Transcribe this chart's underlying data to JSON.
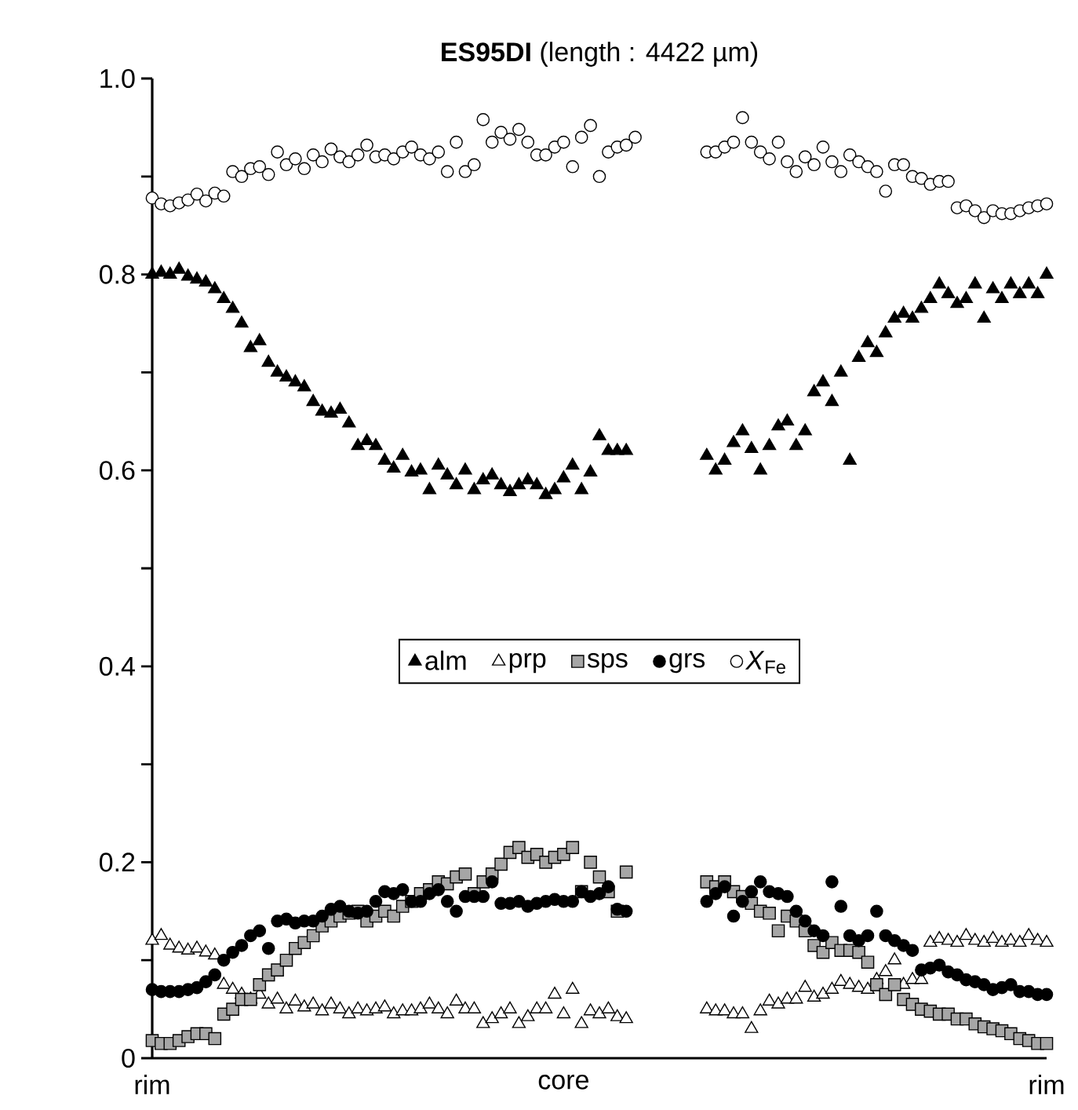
{
  "chart_data": {
    "type": "scatter",
    "title": "**ES95DI** (length : 4422 µm)",
    "categories": [
      "rim",
      null,
      null,
      null,
      null,
      null,
      null,
      null,
      null,
      null,
      null,
      null,
      null,
      null,
      null,
      null,
      null,
      null,
      null,
      null,
      null,
      null,
      null,
      null,
      null,
      null,
      null,
      null,
      null,
      null,
      null,
      null,
      null,
      null,
      null,
      null,
      null,
      null,
      null,
      null,
      null,
      null,
      null,
      null,
      null,
      null,
      "core",
      null,
      null,
      null,
      null,
      null,
      null,
      null,
      null,
      null,
      null,
      null,
      null,
      null,
      null,
      null,
      null,
      null,
      null,
      null,
      null,
      null,
      null,
      null,
      null,
      null,
      null,
      null,
      null,
      null,
      null,
      null,
      null,
      null,
      null,
      null,
      null,
      null,
      null,
      null,
      null,
      null,
      null,
      null,
      null,
      null,
      null,
      null,
      null,
      null,
      null,
      null,
      null,
      null,
      "rim"
    ],
    "ylim": [
      0,
      1
    ],
    "yticks": [
      0,
      {
        "value": 0.1,
        "label": null
      },
      0.2,
      {
        "value": 0.3,
        "label": null
      },
      0.4,
      {
        "value": 0.5,
        "label": null
      },
      0.6,
      {
        "value": 0.7,
        "label": null
      },
      0.8,
      {
        "value": 0.9,
        "label": null
      },
      {
        "value": 1,
        "label": "1.0"
      }
    ],
    "legend": "center",
    "grid": false,
    "series": [
      {
        "name": "alm",
        "marker": "triangle",
        "color": "#000000",
        "values": [
          0.8,
          0.802,
          0.8,
          0.805,
          0.798,
          0.795,
          0.792,
          0.785,
          0.775,
          0.765,
          0.75,
          0.725,
          0.732,
          0.71,
          0.7,
          0.695,
          0.69,
          0.685,
          0.67,
          0.66,
          0.658,
          0.662,
          0.648,
          0.625,
          0.63,
          0.625,
          0.61,
          0.602,
          0.615,
          0.598,
          0.6,
          0.58,
          0.605,
          0.595,
          0.585,
          0.6,
          0.58,
          0.59,
          0.595,
          0.585,
          0.578,
          0.585,
          0.59,
          0.585,
          0.575,
          0.58,
          0.592,
          0.605,
          0.58,
          0.598,
          0.635,
          0.62,
          0.62,
          0.62,
          null,
          null,
          null,
          null,
          null,
          null,
          null,
          null,
          0.615,
          0.6,
          0.61,
          0.628,
          0.64,
          0.622,
          0.6,
          0.625,
          0.645,
          0.65,
          0.625,
          0.64,
          0.68,
          0.69,
          0.67,
          0.7,
          0.61,
          0.715,
          0.73,
          0.72,
          0.74,
          0.755,
          0.76,
          0.755,
          0.765,
          0.775,
          0.79,
          0.78,
          0.77,
          0.775,
          0.79,
          0.755,
          0.785,
          0.775,
          0.79,
          0.78,
          0.79,
          0.78,
          0.8
        ]
      },
      {
        "name": "prp",
        "marker": "triangle",
        "color": "#ffffff",
        "values": [
          0.12,
          0.125,
          0.115,
          0.112,
          0.11,
          0.112,
          0.108,
          0.105,
          0.075,
          0.07,
          0.065,
          0.06,
          0.065,
          0.055,
          0.06,
          0.05,
          0.058,
          0.052,
          0.055,
          0.048,
          0.055,
          0.05,
          0.045,
          0.05,
          0.048,
          0.05,
          0.052,
          0.045,
          0.048,
          0.048,
          0.05,
          0.055,
          0.05,
          0.045,
          0.058,
          0.05,
          0.05,
          0.035,
          0.04,
          0.045,
          0.05,
          0.035,
          0.042,
          0.05,
          0.05,
          0.065,
          0.045,
          0.07,
          0.035,
          0.048,
          0.045,
          0.05,
          0.042,
          0.04,
          null,
          null,
          null,
          null,
          null,
          null,
          null,
          null,
          0.05,
          0.048,
          0.048,
          0.045,
          0.045,
          0.03,
          0.048,
          0.058,
          0.055,
          0.06,
          0.06,
          0.072,
          0.062,
          0.065,
          0.07,
          0.078,
          0.075,
          0.072,
          0.07,
          0.08,
          0.088,
          0.1,
          0.075,
          0.08,
          0.08,
          0.118,
          0.122,
          0.12,
          0.118,
          0.125,
          0.12,
          0.118,
          0.122,
          0.118,
          0.12,
          0.118,
          0.125,
          0.12,
          0.118
        ]
      },
      {
        "name": "sps",
        "marker": "square",
        "color": "#a6a6a6",
        "values": [
          0.018,
          0.015,
          0.015,
          0.018,
          0.022,
          0.025,
          0.025,
          0.02,
          0.045,
          0.05,
          0.06,
          0.06,
          0.075,
          0.085,
          0.09,
          0.1,
          0.112,
          0.118,
          0.125,
          0.135,
          0.14,
          0.145,
          0.148,
          0.15,
          0.14,
          0.145,
          0.15,
          0.145,
          0.155,
          0.16,
          0.168,
          0.172,
          0.18,
          0.178,
          0.185,
          0.188,
          0.168,
          0.18,
          0.188,
          0.198,
          0.21,
          0.215,
          0.205,
          0.208,
          0.2,
          0.205,
          0.208,
          0.215,
          0.17,
          0.2,
          0.185,
          0.17,
          0.15,
          0.19,
          null,
          null,
          null,
          null,
          null,
          null,
          null,
          null,
          0.18,
          0.175,
          0.18,
          0.17,
          0.165,
          0.158,
          0.15,
          0.148,
          0.13,
          0.145,
          0.14,
          0.13,
          0.115,
          0.108,
          0.118,
          0.11,
          0.11,
          0.108,
          0.098,
          0.075,
          0.065,
          0.075,
          0.06,
          0.055,
          0.05,
          0.048,
          0.045,
          0.045,
          0.04,
          0.04,
          0.035,
          0.032,
          0.03,
          0.028,
          0.025,
          0.02,
          0.018,
          0.015,
          0.015
        ]
      },
      {
        "name": "grs",
        "marker": "circle",
        "color": "#000000",
        "values": [
          0.07,
          0.068,
          0.068,
          0.068,
          0.07,
          0.072,
          0.078,
          0.085,
          0.1,
          0.108,
          0.115,
          0.125,
          0.13,
          0.112,
          0.14,
          0.142,
          0.138,
          0.14,
          0.14,
          0.145,
          0.152,
          0.155,
          0.15,
          0.148,
          0.15,
          0.16,
          0.17,
          0.168,
          0.172,
          0.16,
          0.16,
          0.168,
          0.172,
          0.16,
          0.15,
          0.165,
          0.165,
          0.165,
          0.18,
          0.158,
          0.158,
          0.16,
          0.155,
          0.158,
          0.16,
          0.162,
          0.16,
          0.16,
          0.17,
          0.165,
          0.168,
          0.175,
          0.152,
          0.15,
          null,
          null,
          null,
          null,
          null,
          null,
          null,
          null,
          0.16,
          0.168,
          0.175,
          0.145,
          0.16,
          0.17,
          0.18,
          0.17,
          0.168,
          0.165,
          0.15,
          0.14,
          0.13,
          0.125,
          0.18,
          0.155,
          0.125,
          0.12,
          0.125,
          0.15,
          0.125,
          0.12,
          0.115,
          0.11,
          0.09,
          0.092,
          0.095,
          0.088,
          0.085,
          0.08,
          0.078,
          0.075,
          0.07,
          0.072,
          0.075,
          0.068,
          0.068,
          0.065,
          0.065
        ]
      },
      {
        "name": "*X*$_{Fe}$",
        "marker": "circle",
        "color": "#ffffff",
        "values": [
          0.878,
          0.872,
          0.87,
          0.873,
          0.876,
          0.882,
          0.875,
          0.883,
          0.88,
          0.905,
          0.9,
          0.908,
          0.91,
          0.902,
          0.925,
          0.912,
          0.918,
          0.908,
          0.922,
          0.915,
          0.928,
          0.92,
          0.915,
          0.922,
          0.932,
          0.92,
          0.922,
          0.918,
          0.925,
          0.93,
          0.922,
          0.918,
          0.925,
          0.905,
          0.935,
          0.905,
          0.912,
          0.958,
          0.935,
          0.945,
          0.938,
          0.948,
          0.935,
          0.922,
          0.922,
          0.93,
          0.935,
          0.91,
          0.94,
          0.952,
          0.9,
          0.925,
          0.93,
          0.932,
          0.94,
          null,
          null,
          null,
          null,
          null,
          null,
          null,
          0.925,
          0.925,
          0.93,
          0.935,
          0.96,
          0.935,
          0.925,
          0.918,
          0.935,
          0.915,
          0.905,
          0.92,
          0.912,
          0.93,
          0.915,
          0.905,
          0.922,
          0.915,
          0.91,
          0.905,
          0.885,
          0.912,
          0.912,
          0.9,
          0.898,
          0.892,
          0.895,
          0.895,
          0.868,
          0.87,
          0.865,
          0.858,
          0.865,
          0.862,
          0.862,
          0.865,
          0.868,
          0.87,
          0.872
        ]
      }
    ]
  }
}
